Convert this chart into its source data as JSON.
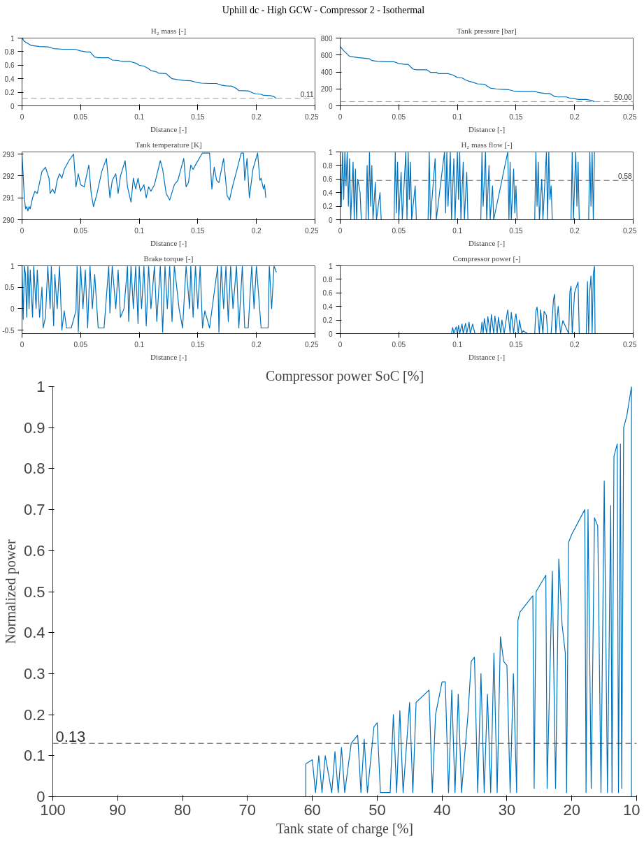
{
  "chart_data": [
    {
      "type": "line",
      "title": "H₂ mass [-]",
      "xlabel": "Distance [-]",
      "annotations": [
        "Uphill dc - High GCW - Compressor 2 - Isothermal"
      ],
      "xlim": [
        0,
        0.25
      ],
      "xticks": [
        0,
        0.05,
        0.1,
        0.15,
        0.2,
        0.25
      ],
      "ylim": [
        0,
        1
      ],
      "yticks": [
        0,
        0.2,
        0.4,
        0.6,
        0.8,
        1
      ],
      "grid": false,
      "x": [
        0,
        0.002,
        0.008,
        0.015,
        0.022,
        0.027,
        0.035,
        0.045,
        0.05,
        0.055,
        0.058,
        0.062,
        0.065,
        0.074,
        0.077,
        0.082,
        0.085,
        0.092,
        0.097,
        0.1,
        0.104,
        0.107,
        0.11,
        0.114,
        0.117,
        0.123,
        0.128,
        0.133,
        0.138,
        0.144,
        0.149,
        0.153,
        0.16,
        0.166,
        0.17,
        0.174,
        0.179,
        0.183,
        0.185,
        0.193,
        0.197,
        0.2,
        0.204,
        0.206,
        0.212,
        0.215,
        0.217
      ],
      "series": [
        {
          "color": "#0072bd",
          "values": [
            1.0,
            0.95,
            0.89,
            0.875,
            0.87,
            0.845,
            0.835,
            0.835,
            0.81,
            0.795,
            0.795,
            0.72,
            0.71,
            0.71,
            0.675,
            0.67,
            0.655,
            0.655,
            0.63,
            0.6,
            0.585,
            0.56,
            0.52,
            0.505,
            0.48,
            0.475,
            0.4,
            0.385,
            0.375,
            0.37,
            0.345,
            0.335,
            0.33,
            0.33,
            0.305,
            0.295,
            0.29,
            0.255,
            0.225,
            0.22,
            0.19,
            0.175,
            0.17,
            0.155,
            0.15,
            0.135,
            0.11
          ]
        }
      ],
      "ref_lines": [
        {
          "axis": "y",
          "value": 0.11,
          "label": "0.11",
          "color": "#999999",
          "line_style": "dashed"
        }
      ]
    },
    {
      "type": "line",
      "title": "Tank pressure [bar]",
      "xlabel": "Distance [-]",
      "xlim": [
        0,
        0.25
      ],
      "xticks": [
        0,
        0.05,
        0.1,
        0.15,
        0.2,
        0.25
      ],
      "ylim": [
        0,
        800
      ],
      "yticks": [
        0,
        200,
        400,
        600,
        800
      ],
      "grid": false,
      "x": [
        0,
        0.003,
        0.008,
        0.015,
        0.022,
        0.025,
        0.027,
        0.032,
        0.04,
        0.046,
        0.05,
        0.055,
        0.058,
        0.062,
        0.065,
        0.074,
        0.077,
        0.082,
        0.084,
        0.092,
        0.096,
        0.1,
        0.104,
        0.107,
        0.11,
        0.114,
        0.117,
        0.123,
        0.128,
        0.133,
        0.138,
        0.144,
        0.148,
        0.155,
        0.166,
        0.17,
        0.175,
        0.179,
        0.183,
        0.185,
        0.193,
        0.196,
        0.2,
        0.203,
        0.21,
        0.214,
        0.217
      ],
      "series": [
        {
          "color": "#0072bd",
          "values": [
            700,
            650,
            585,
            570,
            560,
            555,
            535,
            525,
            520,
            520,
            500,
            490,
            490,
            435,
            425,
            425,
            395,
            395,
            380,
            380,
            365,
            335,
            330,
            305,
            290,
            275,
            260,
            255,
            210,
            200,
            195,
            190,
            175,
            170,
            170,
            155,
            145,
            145,
            110,
            105,
            105,
            90,
            85,
            75,
            75,
            65,
            50
          ]
        }
      ],
      "ref_lines": [
        {
          "axis": "y",
          "value": 50,
          "label": "50.00",
          "color": "#999999",
          "line_style": "dashed"
        }
      ]
    },
    {
      "type": "line",
      "title": "Tank temperature [K]",
      "xlabel": "Distance [-]",
      "xlim": [
        0,
        0.25
      ],
      "xticks": [
        0,
        0.05,
        0.1,
        0.15,
        0.2,
        0.25
      ],
      "ylim": [
        290,
        293.1
      ],
      "yticks": [
        290,
        291,
        292,
        293
      ],
      "grid": false,
      "x": [
        0,
        0.002,
        0.003,
        0.004,
        0.005,
        0.006,
        0.007,
        0.009,
        0.011,
        0.013,
        0.017,
        0.02,
        0.023,
        0.024,
        0.026,
        0.028,
        0.03,
        0.032,
        0.034,
        0.036,
        0.04,
        0.044,
        0.046,
        0.048,
        0.05,
        0.053,
        0.057,
        0.059,
        0.061,
        0.064,
        0.068,
        0.072,
        0.075,
        0.077,
        0.08,
        0.082,
        0.084,
        0.088,
        0.09,
        0.093,
        0.095,
        0.097,
        0.099,
        0.101,
        0.104,
        0.106,
        0.108,
        0.11,
        0.113,
        0.118,
        0.12,
        0.123,
        0.126,
        0.13,
        0.133,
        0.138,
        0.14,
        0.142,
        0.144,
        0.146,
        0.149,
        0.154,
        0.16,
        0.162,
        0.164,
        0.166,
        0.168,
        0.172,
        0.175,
        0.177,
        0.18,
        0.183,
        0.187,
        0.189,
        0.19,
        0.192,
        0.194,
        0.197,
        0.201,
        0.203,
        0.204,
        0.206,
        0.207,
        0.208
      ],
      "series": [
        {
          "color": "#0072bd",
          "values": [
            293,
            291,
            290.5,
            290.6,
            290.4,
            290.6,
            290.5,
            291,
            291.3,
            291.2,
            292.2,
            292.4,
            291.9,
            291.2,
            291.4,
            291.2,
            291.8,
            292.1,
            291.9,
            292.3,
            292.7,
            293,
            291.5,
            292.1,
            291.6,
            291.5,
            292.5,
            291.2,
            290.6,
            291.2,
            292.2,
            292.8,
            291,
            291.8,
            292.1,
            291.2,
            292,
            292.7,
            291.5,
            290.8,
            291.9,
            291.4,
            291.9,
            291.3,
            291.6,
            291,
            291.5,
            291.3,
            291.6,
            292.7,
            292.3,
            291.2,
            290.9,
            291.6,
            291.8,
            292.8,
            291.5,
            291.7,
            292.5,
            292.3,
            292.6,
            293.05,
            293.05,
            291.4,
            292.4,
            291.8,
            291.7,
            292.8,
            291.1,
            290.9,
            291.6,
            292.2,
            293.05,
            293.05,
            291.8,
            292.8,
            291,
            292.3,
            293.05,
            291.8,
            291.9,
            291.4,
            291.6,
            291
          ]
        }
      ]
    },
    {
      "type": "line",
      "title": "H₂ mass flow [-]",
      "xlabel": "Distance [-]",
      "xlim": [
        0,
        0.25
      ],
      "xticks": [
        0,
        0.05,
        0.1,
        0.15,
        0.2,
        0.25
      ],
      "ylim": [
        0,
        1
      ],
      "yticks": [
        0,
        0.2,
        0.4,
        0.6,
        0.8,
        1
      ],
      "grid": false,
      "x": [
        0,
        0.001,
        0.002,
        0.003,
        0.004,
        0.005,
        0.006,
        0.007,
        0.008,
        0.009,
        0.011,
        0.012,
        0.013,
        0.014,
        0.015,
        0.017,
        0.018,
        0.022,
        0.023,
        0.024,
        0.025,
        0.026,
        0.027,
        0.028,
        0.03,
        0.031,
        0.034,
        0.035,
        0.046,
        0.047,
        0.048,
        0.049,
        0.05,
        0.052,
        0.053,
        0.056,
        0.057,
        0.058,
        0.059,
        0.06,
        0.061,
        0.064,
        0.065,
        0.075,
        0.076,
        0.077,
        0.081,
        0.082,
        0.089,
        0.09,
        0.091,
        0.092,
        0.094,
        0.095,
        0.097,
        0.098,
        0.1,
        0.101,
        0.102,
        0.103,
        0.105,
        0.106,
        0.108,
        0.109,
        0.12,
        0.121,
        0.122,
        0.124,
        0.125,
        0.127,
        0.128,
        0.13,
        0.131,
        0.143,
        0.144,
        0.145,
        0.146,
        0.148,
        0.149,
        0.15,
        0.151,
        0.166,
        0.167,
        0.168,
        0.169,
        0.17,
        0.172,
        0.173,
        0.176,
        0.177,
        0.178,
        0.179,
        0.18,
        0.181,
        0.197,
        0.198,
        0.199,
        0.201,
        0.202,
        0.203,
        0.204,
        0.212,
        0.213,
        0.214,
        0.215,
        0.216,
        0.217
      ],
      "series": [
        {
          "color": "#0072bd",
          "values": [
            1,
            0.2,
            1,
            0.3,
            1,
            0.5,
            1,
            0.2,
            0.9,
            0,
            0.85,
            0,
            0.75,
            0,
            0.6,
            0.4,
            0,
            0,
            0.8,
            0,
            1,
            0.2,
            0.8,
            0,
            0.55,
            0,
            0.4,
            0,
            0,
            1,
            0.1,
            0.85,
            0,
            0.7,
            0,
            1,
            0,
            1,
            0.3,
            0.85,
            0,
            0.5,
            0,
            0,
            1,
            0,
            0.9,
            0,
            1,
            0.1,
            1,
            0.2,
            1,
            0,
            0.9,
            0,
            1,
            0.3,
            1,
            0,
            0.85,
            0,
            0.7,
            0,
            0,
            1,
            0.2,
            1,
            0,
            0.8,
            0,
            0.5,
            0,
            1,
            0,
            0.85,
            0,
            0.75,
            0.1,
            0.5,
            0,
            0,
            1,
            0.2,
            0.85,
            0,
            0.6,
            0,
            1,
            0,
            1,
            0.3,
            0.5,
            0,
            0,
            1,
            0,
            1,
            0.2,
            0.85,
            0,
            0,
            1,
            0.2,
            1,
            0,
            1
          ]
        }
      ],
      "ref_lines": [
        {
          "axis": "y",
          "value": 0.58,
          "label": "0.58",
          "color": "#666666",
          "line_style": "dashed"
        }
      ]
    },
    {
      "type": "line",
      "title": "Brake torque [-]",
      "xlabel": "Distance [-]",
      "xlim": [
        0,
        0.25
      ],
      "xticks": [
        0,
        0.05,
        0.1,
        0.15,
        0.2,
        0.25
      ],
      "ylim": [
        -0.58,
        1
      ],
      "yticks": [
        -0.5,
        0,
        0.5,
        1
      ],
      "grid": false,
      "x": [
        0,
        0.001,
        0.002,
        0.003,
        0.004,
        0.005,
        0.006,
        0.007,
        0.009,
        0.01,
        0.012,
        0.013,
        0.015,
        0.017,
        0.018,
        0.02,
        0.022,
        0.024,
        0.025,
        0.027,
        0.028,
        0.03,
        0.032,
        0.034,
        0.036,
        0.038,
        0.042,
        0.046,
        0.047,
        0.048,
        0.05,
        0.052,
        0.054,
        0.056,
        0.058,
        0.06,
        0.062,
        0.065,
        0.07,
        0.074,
        0.075,
        0.077,
        0.08,
        0.082,
        0.084,
        0.087,
        0.09,
        0.091,
        0.093,
        0.095,
        0.097,
        0.099,
        0.1,
        0.102,
        0.104,
        0.106,
        0.108,
        0.11,
        0.113,
        0.115,
        0.118,
        0.12,
        0.122,
        0.124,
        0.126,
        0.128,
        0.13,
        0.134,
        0.137,
        0.14,
        0.143,
        0.144,
        0.146,
        0.148,
        0.15,
        0.152,
        0.154,
        0.156,
        0.16,
        0.167,
        0.168,
        0.17,
        0.172,
        0.174,
        0.176,
        0.178,
        0.18,
        0.183,
        0.185,
        0.188,
        0.19,
        0.193,
        0.196,
        0.198,
        0.2,
        0.204,
        0.21,
        0.211,
        0.213,
        0.215,
        0.217
      ],
      "series": [
        {
          "color": "#0072bd",
          "values": [
            1,
            -0.25,
            1,
            0.8,
            -0.2,
            1,
            0,
            0.9,
            -0.2,
            1,
            0,
            0.9,
            -0.2,
            0.5,
            -0.45,
            -0.2,
            1,
            0,
            1,
            -0.4,
            0.8,
            0,
            1,
            -0.5,
            -0.05,
            -0.45,
            -0.45,
            -0.05,
            1,
            -0.55,
            1,
            0,
            0.9,
            -0.45,
            1,
            0,
            0.8,
            -0.45,
            -0.45,
            1,
            -0.1,
            1,
            0,
            0.9,
            -0.2,
            0,
            1,
            -0.3,
            1,
            0,
            1,
            -0.35,
            1,
            0,
            1,
            -0.4,
            1,
            0,
            1,
            -0.3,
            1,
            -0.55,
            1,
            0,
            1,
            -0.3,
            1,
            0,
            -0.45,
            1,
            0,
            1,
            -0.2,
            1,
            0,
            1,
            -0.45,
            -0.05,
            -0.45,
            1,
            -0.55,
            1,
            0,
            1,
            -0.3,
            1,
            0,
            1,
            -0.45,
            1,
            -0.45,
            -0.45,
            1,
            0,
            1,
            -0.45,
            -0.45,
            1,
            0,
            1,
            0.85
          ]
        }
      ]
    },
    {
      "type": "line",
      "title": "Compressor power [-]",
      "xlabel": "Distance [-]",
      "xlim": [
        0,
        0.25
      ],
      "xticks": [
        0,
        0.05,
        0.1,
        0.15,
        0.2,
        0.25
      ],
      "ylim": [
        0,
        1
      ],
      "yticks": [
        0,
        0.2,
        0.4,
        0.6,
        0.8,
        1
      ],
      "grid": false,
      "x": [
        0,
        0.095,
        0.096,
        0.097,
        0.099,
        0.1,
        0.101,
        0.102,
        0.104,
        0.105,
        0.107,
        0.108,
        0.11,
        0.111,
        0.113,
        0.115,
        0.12,
        0.121,
        0.122,
        0.123,
        0.125,
        0.126,
        0.128,
        0.129,
        0.131,
        0.132,
        0.134,
        0.135,
        0.137,
        0.138,
        0.14,
        0.142,
        0.143,
        0.145,
        0.146,
        0.148,
        0.149,
        0.15,
        0.152,
        0.153,
        0.155,
        0.156,
        0.16,
        0.166,
        0.167,
        0.168,
        0.17,
        0.171,
        0.173,
        0.174,
        0.176,
        0.177,
        0.18,
        0.182,
        0.183,
        0.184,
        0.186,
        0.188,
        0.19,
        0.195,
        0.196,
        0.197,
        0.198,
        0.2,
        0.201,
        0.203,
        0.204,
        0.21,
        0.211,
        0.212,
        0.213,
        0.214,
        0.215,
        0.216,
        0.217,
        0.2175
      ],
      "series": [
        {
          "color": "#0072bd",
          "values": [
            0,
            0,
            0.09,
            0,
            0.1,
            0,
            0.12,
            0,
            0.14,
            0,
            0.15,
            0,
            0.17,
            0,
            0.14,
            0,
            0,
            0.17,
            0,
            0.22,
            0,
            0.25,
            0,
            0.28,
            0,
            0.26,
            0,
            0.24,
            0,
            0.2,
            0,
            0.25,
            0.35,
            0,
            0.31,
            0,
            0.2,
            0.29,
            0,
            0.2,
            0,
            0.04,
            0,
            0,
            0.33,
            0.39,
            0,
            0.35,
            0,
            0.33,
            0.27,
            0,
            0,
            0.5,
            0.58,
            0,
            0.4,
            0,
            0.19,
            0,
            0.62,
            0.7,
            0,
            0.6,
            0.66,
            0.76,
            0,
            0,
            0.77,
            0,
            0.64,
            0.85,
            0,
            0.88,
            1,
            0
          ]
        }
      ]
    },
    {
      "type": "line",
      "title": "Compressor power SoC [%]",
      "xlabel": "Tank state of charge [%]",
      "ylabel": "Normalized power",
      "xlim": [
        100,
        10
      ],
      "xticks": [
        100,
        90,
        80,
        70,
        60,
        50,
        40,
        30,
        20,
        10
      ],
      "ylim": [
        0,
        1
      ],
      "yticks": [
        0,
        0.1,
        0.2,
        0.3,
        0.4,
        0.5,
        0.6,
        0.7,
        0.8,
        0.9,
        1
      ],
      "grid": false,
      "x": [
        100,
        61,
        61,
        60,
        59.5,
        59,
        58.5,
        58,
        57,
        56.5,
        56,
        55.5,
        55,
        54,
        53.5,
        53,
        52.5,
        52,
        51.5,
        50.5,
        50,
        49.5,
        48,
        47.5,
        47,
        46.5,
        46,
        45,
        44.5,
        44,
        42,
        41.5,
        41,
        40,
        39.5,
        39,
        38.5,
        38,
        37.5,
        37,
        36,
        35.5,
        35,
        34.5,
        34,
        33.5,
        33,
        32.5,
        32,
        31.5,
        31,
        30.5,
        30,
        29.5,
        29,
        28.5,
        28.3,
        28,
        26,
        25.8,
        25.5,
        24,
        23.8,
        23,
        22.5,
        22,
        21.5,
        21,
        20.8,
        20.5,
        20,
        18,
        17.8,
        17.5,
        17,
        16.5,
        16,
        15.5,
        15,
        14.5,
        14,
        13.8,
        13.5,
        13,
        12.8,
        12.5,
        12.3,
        12,
        11.5,
        10.8,
        10.8
      ],
      "series": [
        {
          "color": "#0072bd",
          "values": [
            0,
            0,
            0.08,
            0.09,
            0.01,
            0.1,
            0.01,
            0.1,
            0.01,
            0.11,
            0.01,
            0.12,
            0.01,
            0.13,
            0.14,
            0.15,
            0.01,
            0.14,
            0.01,
            0.17,
            0.18,
            0.01,
            0.01,
            0.2,
            0.01,
            0.21,
            0.01,
            0.23,
            0.01,
            0.23,
            0.26,
            0.01,
            0.2,
            0.28,
            0.28,
            0.01,
            0.26,
            0.01,
            0.25,
            0.01,
            0.2,
            0.33,
            0.34,
            0.01,
            0.3,
            0.01,
            0.25,
            0.01,
            0.35,
            0.01,
            0.39,
            0.33,
            0.32,
            0.01,
            0.3,
            0.01,
            0.43,
            0.45,
            0.49,
            0.02,
            0.5,
            0.54,
            0.02,
            0.55,
            0.02,
            0.58,
            0.42,
            0.35,
            0.01,
            0.62,
            0.64,
            0.7,
            0.01,
            0.7,
            0.02,
            0.68,
            0.66,
            0.01,
            0.77,
            0.01,
            0.71,
            0.01,
            0.83,
            0.86,
            0.01,
            0.86,
            0.02,
            0.9,
            0.93,
            1,
            0
          ]
        }
      ],
      "ref_lines": [
        {
          "axis": "y",
          "value": 0.13,
          "label": "0.13",
          "color": "#444444",
          "line_style": "dashed"
        }
      ]
    }
  ]
}
